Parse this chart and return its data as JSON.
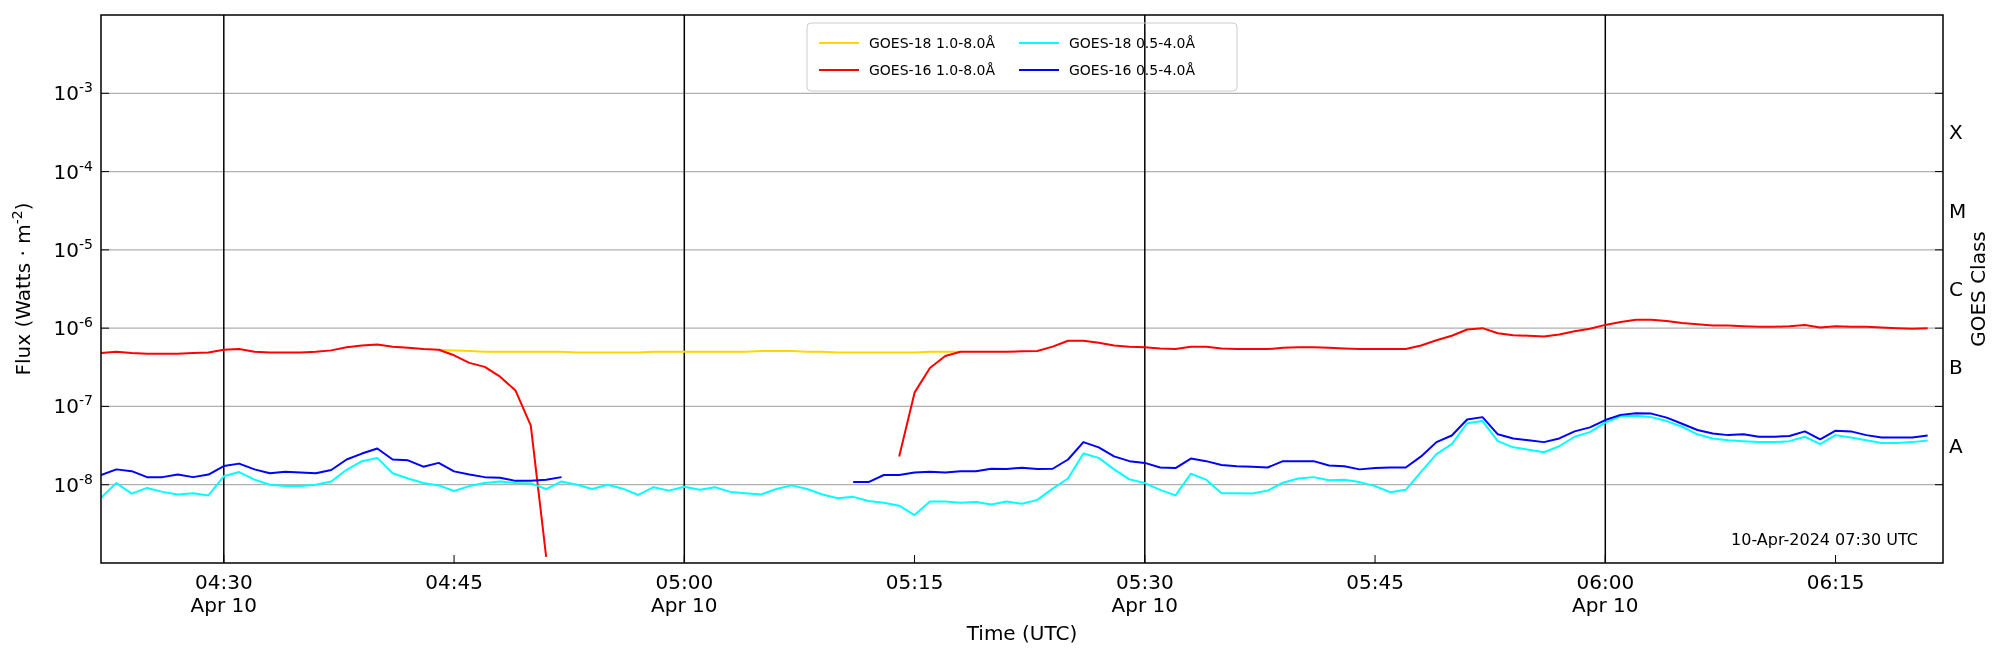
{
  "chart_data": {
    "type": "line",
    "xlabel": "Time (UTC)",
    "ylabel": "Flux (Watts · m$^{-2}$)",
    "y2label": "GOES Class",
    "log": true,
    "grid": "y",
    "legend": "top",
    "line_style": "solid",
    "marker": "none",
    "annotations": [
      "10-Apr-2024 07:30 UTC",
      "A",
      "B",
      "C",
      "M",
      "X"
    ],
    "xlim": [
      "2024-04-10T04:22",
      "2024-04-10T06:22"
    ],
    "xticks": [
      {
        "value": "2024-04-10T04:30",
        "label": "04:30\nApr 10"
      },
      {
        "value": "2024-04-10T04:45",
        "label": "04:45"
      },
      {
        "value": "2024-04-10T05:00",
        "label": "05:00\nApr 10"
      },
      {
        "value": "2024-04-10T05:15",
        "label": "05:15"
      },
      {
        "value": "2024-04-10T05:30",
        "label": "05:30\nApr 10"
      },
      {
        "value": "2024-04-10T05:45",
        "label": "05:45"
      },
      {
        "value": "2024-04-10T06:00",
        "label": "06:00\nApr 10"
      },
      {
        "value": "2024-04-10T06:15",
        "label": "06:15"
      }
    ],
    "ylim": [
      1e-09,
      0.01
    ],
    "yticks": [
      {
        "value": 1e-08,
        "label": "10$^{-8}$"
      },
      {
        "value": 1e-07,
        "label": "10$^{-7}$"
      },
      {
        "value": 1e-06,
        "label": "10$^{-6}$"
      },
      {
        "value": 1e-05,
        "label": "10$^{-5}$"
      },
      {
        "value": 0.0001,
        "label": "10$^{-4}$"
      },
      {
        "value": 0.001,
        "label": "10$^{-3}$"
      }
    ],
    "ref_lines": [
      {
        "axis": "x",
        "value": "2024-04-10T04:30",
        "color": "#000000"
      },
      {
        "axis": "x",
        "value": "2024-04-10T05:00",
        "color": "#000000"
      },
      {
        "axis": "x",
        "value": "2024-04-10T05:30",
        "color": "#000000"
      },
      {
        "axis": "x",
        "value": "2024-04-10T06:00",
        "color": "#000000"
      }
    ],
    "x": [
      "2024-04-10T04:22",
      "2024-04-10T04:23",
      "2024-04-10T04:24",
      "2024-04-10T04:25",
      "2024-04-10T04:26",
      "2024-04-10T04:27",
      "2024-04-10T04:28",
      "2024-04-10T04:29",
      "2024-04-10T04:30",
      "2024-04-10T04:31",
      "2024-04-10T04:32",
      "2024-04-10T04:33",
      "2024-04-10T04:34",
      "2024-04-10T04:35",
      "2024-04-10T04:36",
      "2024-04-10T04:37",
      "2024-04-10T04:38",
      "2024-04-10T04:39",
      "2024-04-10T04:40",
      "2024-04-10T04:41",
      "2024-04-10T04:42",
      "2024-04-10T04:43",
      "2024-04-10T04:44",
      "2024-04-10T04:45",
      "2024-04-10T04:46",
      "2024-04-10T04:47",
      "2024-04-10T04:48",
      "2024-04-10T04:49",
      "2024-04-10T04:50",
      "2024-04-10T04:51",
      "2024-04-10T04:52",
      "2024-04-10T04:53",
      "2024-04-10T04:54",
      "2024-04-10T04:55",
      "2024-04-10T04:56",
      "2024-04-10T04:57",
      "2024-04-10T04:58",
      "2024-04-10T04:59",
      "2024-04-10T05:00",
      "2024-04-10T05:01",
      "2024-04-10T05:02",
      "2024-04-10T05:03",
      "2024-04-10T05:04",
      "2024-04-10T05:05",
      "2024-04-10T05:06",
      "2024-04-10T05:07",
      "2024-04-10T05:08",
      "2024-04-10T05:09",
      "2024-04-10T05:10",
      "2024-04-10T05:11",
      "2024-04-10T05:12",
      "2024-04-10T05:13",
      "2024-04-10T05:14",
      "2024-04-10T05:15",
      "2024-04-10T05:16",
      "2024-04-10T05:17",
      "2024-04-10T05:18",
      "2024-04-10T05:19",
      "2024-04-10T05:20",
      "2024-04-10T05:21",
      "2024-04-10T05:22",
      "2024-04-10T05:23",
      "2024-04-10T05:24",
      "2024-04-10T05:25",
      "2024-04-10T05:26",
      "2024-04-10T05:27",
      "2024-04-10T05:28",
      "2024-04-10T05:29",
      "2024-04-10T05:30",
      "2024-04-10T05:31",
      "2024-04-10T05:32",
      "2024-04-10T05:33",
      "2024-04-10T05:34",
      "2024-04-10T05:35",
      "2024-04-10T05:36",
      "2024-04-10T05:37",
      "2024-04-10T05:38",
      "2024-04-10T05:39",
      "2024-04-10T05:40",
      "2024-04-10T05:41",
      "2024-04-10T05:42",
      "2024-04-10T05:43",
      "2024-04-10T05:44",
      "2024-04-10T05:45",
      "2024-04-10T05:46",
      "2024-04-10T05:47",
      "2024-04-10T05:48",
      "2024-04-10T05:49",
      "2024-04-10T05:50",
      "2024-04-10T05:51",
      "2024-04-10T05:52",
      "2024-04-10T05:53",
      "2024-04-10T05:54",
      "2024-04-10T05:55",
      "2024-04-10T05:56",
      "2024-04-10T05:57",
      "2024-04-10T05:58",
      "2024-04-10T05:59",
      "2024-04-10T06:00",
      "2024-04-10T06:01",
      "2024-04-10T06:02",
      "2024-04-10T06:03",
      "2024-04-10T06:04",
      "2024-04-10T06:05",
      "2024-04-10T06:06",
      "2024-04-10T06:07",
      "2024-04-10T06:08",
      "2024-04-10T06:09",
      "2024-04-10T06:10",
      "2024-04-10T06:11",
      "2024-04-10T06:12",
      "2024-04-10T06:13",
      "2024-04-10T06:14",
      "2024-04-10T06:15",
      "2024-04-10T06:16",
      "2024-04-10T06:17",
      "2024-04-10T06:18",
      "2024-04-10T06:19",
      "2024-04-10T06:20",
      "2024-04-10T06:21"
    ],
    "series": [
      {
        "name": "GOES-18 1.0-8.0Å",
        "color": "#ffd700",
        "values": [
          null,
          null,
          null,
          null,
          null,
          null,
          null,
          null,
          null,
          null,
          null,
          null,
          null,
          null,
          null,
          null,
          null,
          null,
          null,
          null,
          null,
          null,
          5.3e-07,
          5.2e-07,
          5.1e-07,
          5e-07,
          5e-07,
          5e-07,
          5e-07,
          5e-07,
          5e-07,
          4.9e-07,
          4.9e-07,
          4.9e-07,
          4.9e-07,
          4.9e-07,
          5e-07,
          5e-07,
          5e-07,
          5e-07,
          5e-07,
          5e-07,
          5e-07,
          5.1e-07,
          5.1e-07,
          5.1e-07,
          5e-07,
          5e-07,
          4.9e-07,
          4.9e-07,
          4.9e-07,
          4.9e-07,
          4.9e-07,
          4.9e-07,
          5e-07,
          5e-07,
          5e-07,
          null,
          null,
          null,
          null,
          null,
          null,
          null,
          null,
          null,
          null,
          null,
          null,
          null,
          null,
          null,
          null,
          null,
          null,
          null,
          null,
          null,
          null,
          null,
          null,
          null,
          null,
          null,
          null,
          null,
          null,
          null,
          null,
          null,
          null,
          null,
          null,
          null,
          null,
          null,
          null,
          null,
          null,
          null,
          null,
          null,
          null,
          null,
          null,
          null,
          null,
          null,
          null,
          null,
          null,
          null,
          null,
          null,
          null,
          null,
          null,
          null,
          null,
          null
        ]
      },
      {
        "name": "GOES-16 1.0-8.0Å",
        "color": "#ff0000",
        "values": [
          4.8e-07,
          5e-07,
          4.8e-07,
          4.7e-07,
          4.7e-07,
          4.7e-07,
          4.8e-07,
          4.9e-07,
          5.3e-07,
          5.4e-07,
          5e-07,
          4.9e-07,
          4.9e-07,
          4.9e-07,
          5e-07,
          5.2e-07,
          5.7e-07,
          6e-07,
          6.2e-07,
          5.8e-07,
          5.6e-07,
          5.4e-07,
          5.3e-07,
          4.5e-07,
          3.6e-07,
          3.2e-07,
          2.4e-07,
          1.6e-07,
          5.7e-08,
          1.2e-09,
          null,
          null,
          null,
          null,
          null,
          null,
          null,
          null,
          null,
          null,
          null,
          null,
          null,
          null,
          null,
          null,
          null,
          null,
          null,
          null,
          null,
          null,
          2.3e-08,
          1.5e-07,
          3.1e-07,
          4.4e-07,
          5e-07,
          5e-07,
          5e-07,
          5e-07,
          5.05e-07,
          5.1e-07,
          5.8e-07,
          6.9e-07,
          6.9e-07,
          6.5e-07,
          6e-07,
          5.8e-07,
          5.7e-07,
          5.5e-07,
          5.4e-07,
          5.8e-07,
          5.8e-07,
          5.5e-07,
          5.4e-07,
          5.4e-07,
          5.4e-07,
          5.6e-07,
          5.7e-07,
          5.7e-07,
          5.6e-07,
          5.5e-07,
          5.4e-07,
          5.4e-07,
          5.4e-07,
          5.4e-07,
          6e-07,
          7e-07,
          8e-07,
          9.6e-07,
          1e-06,
          8.6e-07,
          8.1e-07,
          8e-07,
          7.8e-07,
          8.3e-07,
          9.1e-07,
          9.8e-07,
          1.1e-06,
          1.2e-06,
          1.28e-06,
          1.28e-06,
          1.23e-06,
          1.16e-06,
          1.12e-06,
          1.08e-06,
          1.08e-06,
          1.06e-06,
          1.04e-06,
          1.04e-06,
          1.06e-06,
          1.1e-06,
          1.02e-06,
          1.06e-06,
          1.04e-06,
          1.04e-06,
          1.02e-06,
          1e-06,
          9.8e-07,
          1e-06
        ]
      },
      {
        "name": "GOES-18 0.5-4.0Å",
        "color": "#00ffff",
        "values": [
          6.8e-09,
          1.05e-08,
          7.7e-09,
          9.1e-09,
          8.1e-09,
          7.5e-09,
          7.8e-09,
          7.3e-09,
          1.28e-08,
          1.45e-08,
          1.16e-08,
          1e-08,
          9.6e-09,
          9.6e-09,
          1e-08,
          1.1e-08,
          1.55e-08,
          2e-08,
          2.2e-08,
          1.4e-08,
          1.2e-08,
          1.05e-08,
          9.8e-09,
          8.3e-09,
          9.6e-09,
          1.05e-08,
          1.1e-08,
          1.05e-08,
          1.04e-08,
          8.8e-09,
          1.1e-08,
          1e-08,
          8.8e-09,
          1e-08,
          8.9e-09,
          7.4e-09,
          9.3e-09,
          8.4e-09,
          9.4e-09,
          8.6e-09,
          9.3e-09,
          8.1e-09,
          7.8e-09,
          7.5e-09,
          8.8e-09,
          9.8e-09,
          8.8e-09,
          7.5e-09,
          6.7e-09,
          7e-09,
          6.2e-09,
          5.9e-09,
          5.4e-09,
          4.1e-09,
          6.1e-09,
          6.1e-09,
          5.9e-09,
          6e-09,
          5.6e-09,
          6.1e-09,
          5.7e-09,
          6.4e-09,
          8.9e-09,
          1.2e-08,
          2.5e-08,
          2.2e-08,
          1.57e-08,
          1.17e-08,
          1.05e-08,
          8.6e-09,
          7.3e-09,
          1.38e-08,
          1.16e-08,
          7.8e-09,
          7.8e-09,
          7.7e-09,
          8.4e-09,
          1.06e-08,
          1.2e-08,
          1.25e-08,
          1.14e-08,
          1.16e-08,
          1.08e-08,
          9.6e-09,
          8e-09,
          8.6e-09,
          1.46e-08,
          2.46e-08,
          3.3e-08,
          6.1e-08,
          6.5e-08,
          3.6e-08,
          3e-08,
          2.8e-08,
          2.6e-08,
          3.1e-08,
          4.1e-08,
          4.7e-08,
          6.2e-08,
          7.5e-08,
          7.6e-08,
          7.3e-08,
          6.5e-08,
          5.5e-08,
          4.4e-08,
          3.9e-08,
          3.7e-08,
          3.6e-08,
          3.5e-08,
          3.5e-08,
          3.6e-08,
          4.1e-08,
          3.3e-08,
          4.3e-08,
          4e-08,
          3.7e-08,
          3.4e-08,
          3.4e-08,
          3.5e-08,
          3.66e-08
        ]
      },
      {
        "name": "GOES-16 0.5-4.0Å",
        "color": "#0000ff",
        "x": [
          "2024-04-10T04:22",
          "2024-04-10T04:23",
          "2024-04-10T04:24",
          "2024-04-10T04:25",
          "2024-04-10T04:26",
          "2024-04-10T04:27",
          "2024-04-10T04:28",
          "2024-04-10T04:29",
          "2024-04-10T04:30",
          "2024-04-10T04:31",
          "2024-04-10T04:32",
          "2024-04-10T04:33",
          "2024-04-10T04:34",
          "2024-04-10T04:35",
          "2024-04-10T04:36",
          "2024-04-10T04:37",
          "2024-04-10T04:38",
          "2024-04-10T04:39",
          "2024-04-10T04:40",
          "2024-04-10T04:41",
          "2024-04-10T04:42",
          "2024-04-10T04:43",
          "2024-04-10T04:44",
          "2024-04-10T04:45",
          "2024-04-10T04:46",
          "2024-04-10T04:47",
          "2024-04-10T04:48",
          "2024-04-10T04:49",
          "2024-04-10T04:50",
          "2024-04-10T04:51",
          "2024-04-10T04:52",
          "2024-04-10T04:53",
          "2024-04-10T04:54",
          "2024-04-10T04:55",
          "2024-04-10T04:56",
          "2024-04-10T04:57",
          "2024-04-10T04:58",
          "2024-04-10T04:59",
          "2024-04-10T05:00",
          "2024-04-10T05:01",
          "2024-04-10T05:02",
          "2024-04-10T05:03",
          "2024-04-10T05:04",
          "2024-04-10T05:05",
          "2024-04-10T05:06",
          "2024-04-10T05:07",
          "2024-04-10T05:08",
          "2024-04-10T05:09",
          "2024-04-10T05:10",
          "2024-04-10T05:11",
          "2024-04-10T05:12",
          "2024-04-10T05:13",
          "2024-04-10T05:14",
          "2024-04-10T05:15",
          "2024-04-10T05:16",
          "2024-04-10T05:17",
          "2024-04-10T05:18",
          "2024-04-10T05:19",
          "2024-04-10T05:20",
          "2024-04-10T05:21",
          "2024-04-10T05:22",
          "2024-04-10T05:23",
          "2024-04-10T05:24",
          "2024-04-10T05:25",
          "2024-04-10T05:26",
          "2024-04-10T05:27",
          "2024-04-10T05:28",
          "2024-04-10T05:29",
          "2024-04-10T05:30",
          "2024-04-10T05:31",
          "2024-04-10T05:32",
          "2024-04-10T05:33",
          "2024-04-10T05:34",
          "2024-04-10T05:35",
          "2024-04-10T05:36",
          "2024-04-10T05:37",
          "2024-04-10T05:38",
          "2024-04-10T05:39",
          "2024-04-10T05:40",
          "2024-04-10T05:41",
          "2024-04-10T05:42",
          "2024-04-10T05:43",
          "2024-04-10T05:44",
          "2024-04-10T05:45",
          "2024-04-10T05:46",
          "2024-04-10T05:47",
          "2024-04-10T05:48",
          "2024-04-10T05:49",
          "2024-04-10T05:50",
          "2024-04-10T05:51",
          "2024-04-10T05:52",
          "2024-04-10T05:53",
          "2024-04-10T05:54",
          "2024-04-10T05:55",
          "2024-04-10T05:56",
          "2024-04-10T05:57",
          "2024-04-10T05:58",
          "2024-04-10T05:59",
          "2024-04-10T06:00",
          "2024-04-10T06:01",
          "2024-04-10T06:02",
          "2024-04-10T06:03",
          "2024-04-10T06:04",
          "2024-04-10T06:05",
          "2024-04-10T06:06",
          "2024-04-10T06:07",
          "2024-04-10T06:08",
          "2024-04-10T06:09",
          "2024-04-10T06:10",
          "2024-04-10T06:11",
          "2024-04-10T06:12",
          "2024-04-10T06:13",
          "2024-04-10T06:14",
          "2024-04-10T06:15",
          "2024-04-10T06:16",
          "2024-04-10T06:17",
          "2024-04-10T06:18",
          "2024-04-10T06:19",
          "2024-04-10T06:20",
          "2024-04-10T06:21"
        ],
        "values": [
          1.33e-08,
          1.57e-08,
          1.49e-08,
          1.25e-08,
          1.25e-08,
          1.35e-08,
          1.25e-08,
          1.35e-08,
          1.73e-08,
          1.86e-08,
          1.57e-08,
          1.4e-08,
          1.46e-08,
          1.43e-08,
          1.4e-08,
          1.54e-08,
          2.1e-08,
          2.5e-08,
          2.9e-08,
          2.1e-08,
          2.05e-08,
          1.7e-08,
          1.9e-08,
          1.48e-08,
          1.35e-08,
          1.25e-08,
          1.23e-08,
          1.12e-08,
          1.12e-08,
          1.16e-08,
          1.25e-08,
          null,
          null,
          null,
          null,
          null,
          null,
          null,
          null,
          null,
          null,
          null,
          null,
          null,
          null,
          null,
          null,
          null,
          null,
          1.08e-08,
          1.08e-08,
          1.33e-08,
          1.33e-08,
          1.43e-08,
          1.46e-08,
          1.43e-08,
          1.49e-08,
          1.49e-08,
          1.6e-08,
          1.59e-08,
          1.65e-08,
          1.59e-08,
          1.6e-08,
          2.1e-08,
          3.5e-08,
          3e-08,
          2.3e-08,
          2e-08,
          1.9e-08,
          1.66e-08,
          1.63e-08,
          2.16e-08,
          2e-08,
          1.79e-08,
          1.72e-08,
          1.69e-08,
          1.66e-08,
          2e-08,
          2e-08,
          2e-08,
          1.76e-08,
          1.72e-08,
          1.57e-08,
          1.63e-08,
          1.66e-08,
          1.66e-08,
          2.3e-08,
          3.5e-08,
          4.25e-08,
          6.8e-08,
          7.3e-08,
          4.4e-08,
          3.9e-08,
          3.7e-08,
          3.5e-08,
          3.9e-08,
          4.8e-08,
          5.4e-08,
          6.7e-08,
          7.8e-08,
          8.2e-08,
          8.1e-08,
          7.2e-08,
          6e-08,
          5e-08,
          4.5e-08,
          4.3e-08,
          4.4e-08,
          4.1e-08,
          4.1e-08,
          4.2e-08,
          4.8e-08,
          3.8e-08,
          4.9e-08,
          4.8e-08,
          4.3e-08,
          4e-08,
          4e-08,
          4e-08,
          4.25e-08
        ]
      }
    ]
  }
}
